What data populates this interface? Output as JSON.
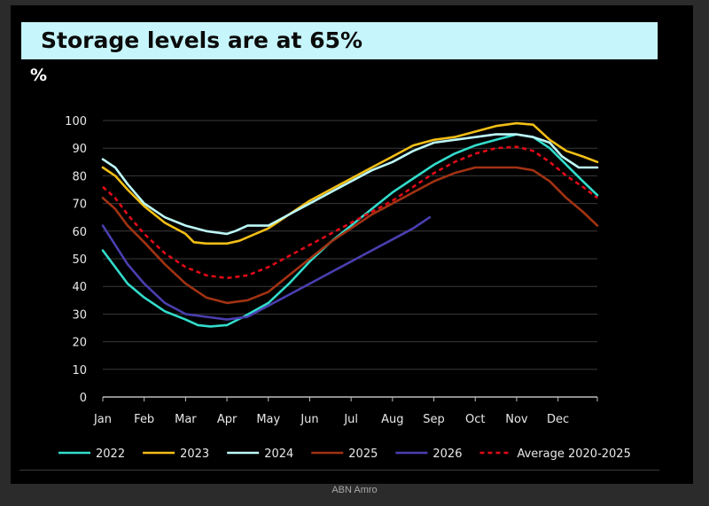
{
  "title": "Storage levels are at 65%",
  "source": "ABN Amro",
  "colors": {
    "title_bg": "#c6f6fb",
    "background": "#000000"
  },
  "chart_data": {
    "type": "line",
    "title": "Storage levels are at 65%",
    "ylabel": "%",
    "xlabel": "",
    "ylim": [
      0,
      100
    ],
    "xlim": [
      1,
      12.95
    ],
    "yticks": [
      0,
      10,
      20,
      30,
      40,
      50,
      60,
      70,
      80,
      90,
      100
    ],
    "months": [
      "Jan",
      "Feb",
      "Mar",
      "Apr",
      "May",
      "Jun",
      "Jul",
      "Aug",
      "Sep",
      "Oct",
      "Nov",
      "Dec"
    ],
    "grid": true,
    "legend_position": "bottom",
    "series": [
      {
        "name": "2022",
        "color": "#33dccc",
        "dashed": false,
        "points": [
          [
            1,
            53
          ],
          [
            1.3,
            47
          ],
          [
            1.6,
            41
          ],
          [
            2,
            36
          ],
          [
            2.5,
            31
          ],
          [
            3,
            28
          ],
          [
            3.3,
            26
          ],
          [
            3.6,
            25.5
          ],
          [
            4,
            26
          ],
          [
            4.4,
            29
          ],
          [
            5,
            34
          ],
          [
            5.5,
            41
          ],
          [
            6,
            49
          ],
          [
            6.5,
            56
          ],
          [
            7,
            62
          ],
          [
            7.5,
            68
          ],
          [
            8,
            74
          ],
          [
            8.5,
            79
          ],
          [
            9,
            84
          ],
          [
            9.5,
            88
          ],
          [
            10,
            91
          ],
          [
            10.5,
            93
          ],
          [
            11,
            95
          ],
          [
            11.4,
            94
          ],
          [
            11.8,
            90
          ],
          [
            12.2,
            84
          ],
          [
            12.6,
            78
          ],
          [
            12.95,
            73
          ]
        ]
      },
      {
        "name": "2023",
        "color": "#f2be16",
        "dashed": false,
        "points": [
          [
            1,
            83
          ],
          [
            1.3,
            80
          ],
          [
            1.6,
            75
          ],
          [
            2,
            69
          ],
          [
            2.5,
            63
          ],
          [
            3,
            59
          ],
          [
            3.2,
            56
          ],
          [
            3.5,
            55.5
          ],
          [
            4,
            55.5
          ],
          [
            4.3,
            56.5
          ],
          [
            5,
            61
          ],
          [
            5.5,
            66
          ],
          [
            6,
            71
          ],
          [
            6.5,
            75
          ],
          [
            7,
            79
          ],
          [
            7.5,
            83
          ],
          [
            8,
            87
          ],
          [
            8.5,
            91
          ],
          [
            9,
            93
          ],
          [
            9.5,
            94
          ],
          [
            10,
            96
          ],
          [
            10.5,
            98
          ],
          [
            11,
            99
          ],
          [
            11.4,
            98.5
          ],
          [
            11.8,
            93
          ],
          [
            12.2,
            89
          ],
          [
            12.6,
            87
          ],
          [
            12.95,
            85
          ]
        ]
      },
      {
        "name": "2024",
        "color": "#bdf8f8",
        "dashed": false,
        "points": [
          [
            1,
            86
          ],
          [
            1.3,
            83
          ],
          [
            1.6,
            77
          ],
          [
            2,
            70
          ],
          [
            2.5,
            65
          ],
          [
            3,
            62
          ],
          [
            3.5,
            60
          ],
          [
            4,
            59
          ],
          [
            4.2,
            60
          ],
          [
            4.5,
            62
          ],
          [
            5,
            62
          ],
          [
            5.5,
            66
          ],
          [
            6,
            70
          ],
          [
            6.5,
            74
          ],
          [
            7,
            78
          ],
          [
            7.5,
            82
          ],
          [
            8,
            85
          ],
          [
            8.5,
            89
          ],
          [
            9,
            92
          ],
          [
            9.5,
            93
          ],
          [
            10,
            94
          ],
          [
            10.5,
            95
          ],
          [
            11,
            95
          ],
          [
            11.4,
            94
          ],
          [
            11.8,
            92
          ],
          [
            12.1,
            87
          ],
          [
            12.5,
            83
          ],
          [
            12.95,
            83
          ]
        ]
      },
      {
        "name": "2025",
        "color": "#a13212",
        "dashed": false,
        "points": [
          [
            1,
            72
          ],
          [
            1.3,
            68
          ],
          [
            1.6,
            62
          ],
          [
            2,
            56
          ],
          [
            2.5,
            48
          ],
          [
            3,
            41
          ],
          [
            3.5,
            36
          ],
          [
            4,
            34
          ],
          [
            4.5,
            35
          ],
          [
            5,
            38
          ],
          [
            5.5,
            44
          ],
          [
            6,
            50
          ],
          [
            6.5,
            56
          ],
          [
            7,
            61
          ],
          [
            7.5,
            66
          ],
          [
            8,
            70
          ],
          [
            8.5,
            74
          ],
          [
            9,
            78
          ],
          [
            9.5,
            81
          ],
          [
            10,
            83
          ],
          [
            10.5,
            83
          ],
          [
            11,
            83
          ],
          [
            11.4,
            82
          ],
          [
            11.8,
            78
          ],
          [
            12.2,
            72
          ],
          [
            12.6,
            67
          ],
          [
            12.95,
            62
          ]
        ]
      },
      {
        "name": "2026",
        "color": "#4a3fb0",
        "dashed": false,
        "points": [
          [
            1,
            62
          ],
          [
            1.3,
            55
          ],
          [
            1.6,
            48
          ],
          [
            2,
            41
          ],
          [
            2.5,
            34
          ],
          [
            3,
            30
          ],
          [
            3.5,
            29
          ],
          [
            4,
            28
          ],
          [
            4.5,
            29
          ],
          [
            5,
            33
          ],
          [
            5.5,
            37
          ],
          [
            6,
            41
          ],
          [
            6.5,
            45
          ],
          [
            7,
            49
          ],
          [
            7.5,
            53
          ],
          [
            8,
            57
          ],
          [
            8.5,
            61
          ],
          [
            8.9,
            65
          ]
        ]
      },
      {
        "name": "Average 2020-2025",
        "color": "#e00b17",
        "dashed": true,
        "points": [
          [
            1,
            76
          ],
          [
            1.3,
            72
          ],
          [
            1.6,
            66
          ],
          [
            2,
            59
          ],
          [
            2.5,
            52
          ],
          [
            3,
            47
          ],
          [
            3.5,
            44
          ],
          [
            4,
            43
          ],
          [
            4.5,
            44
          ],
          [
            5,
            47
          ],
          [
            5.5,
            51
          ],
          [
            6,
            55
          ],
          [
            6.5,
            59
          ],
          [
            7,
            63
          ],
          [
            7.5,
            67
          ],
          [
            8,
            71
          ],
          [
            8.5,
            76
          ],
          [
            9,
            81
          ],
          [
            9.5,
            85
          ],
          [
            10,
            88
          ],
          [
            10.5,
            90
          ],
          [
            11,
            90.5
          ],
          [
            11.4,
            89
          ],
          [
            11.8,
            85
          ],
          [
            12.2,
            80
          ],
          [
            12.6,
            76
          ],
          [
            12.95,
            72
          ]
        ]
      }
    ]
  }
}
